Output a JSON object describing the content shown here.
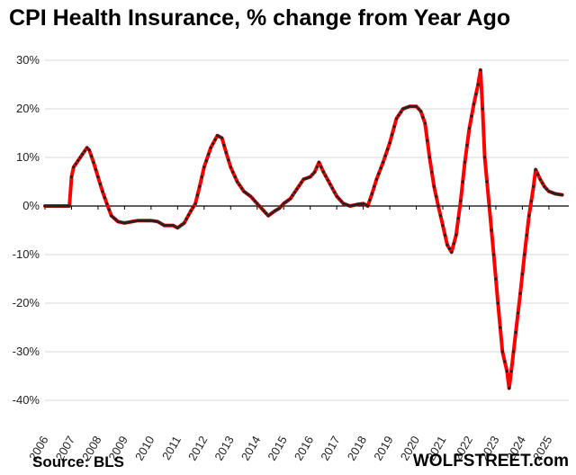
{
  "title": "CPI Health Insurance, % change from Year Ago",
  "source": "Source:  BLS",
  "brand": "WOLFSTREET.com",
  "colors": {
    "line": "#ff0000",
    "marker": "#222222",
    "grid": "#d9d9d9",
    "axis": "#000000"
  },
  "chart_data": {
    "type": "line",
    "title": "CPI Health Insurance, % change from Year Ago",
    "xlabel": "",
    "ylabel": "",
    "ylim": [
      -40,
      30
    ],
    "xlim": [
      2006,
      2025.75
    ],
    "grid": true,
    "legend": "none",
    "y_ticks": [
      30,
      20,
      10,
      0,
      -10,
      -20,
      -30,
      -40
    ],
    "y_tick_labels": [
      "30%",
      "20%",
      "10%",
      "0%",
      "-10%",
      "-20%",
      "-30%",
      "-40%"
    ],
    "x_ticks": [
      2006,
      2007,
      2008,
      2009,
      2010,
      2011,
      2012,
      2013,
      2014,
      2015,
      2016,
      2017,
      2018,
      2019,
      2020,
      2021,
      2022,
      2023,
      2024,
      2025
    ],
    "x_tick_labels": [
      "2006",
      "2007",
      "2008",
      "2009",
      "2010",
      "2011",
      "2012",
      "2013",
      "2014",
      "2015",
      "2016",
      "2017",
      "2018",
      "2019",
      "2020",
      "2021",
      "2022",
      "2023",
      "2024",
      "2025"
    ],
    "series": [
      {
        "points": [
          [
            2006.0,
            0
          ],
          [
            2006.5,
            0
          ],
          [
            2006.92,
            0
          ],
          [
            2007.0,
            6
          ],
          [
            2007.08,
            8
          ],
          [
            2007.33,
            10
          ],
          [
            2007.58,
            12
          ],
          [
            2007.67,
            11.5
          ],
          [
            2007.83,
            9
          ],
          [
            2008.0,
            6
          ],
          [
            2008.17,
            3
          ],
          [
            2008.33,
            0.5
          ],
          [
            2008.5,
            -2
          ],
          [
            2008.75,
            -3.2
          ],
          [
            2009.0,
            -3.5
          ],
          [
            2009.5,
            -3
          ],
          [
            2010.0,
            -3
          ],
          [
            2010.25,
            -3.2
          ],
          [
            2010.5,
            -4
          ],
          [
            2010.83,
            -4
          ],
          [
            2011.0,
            -4.5
          ],
          [
            2011.25,
            -3.5
          ],
          [
            2011.5,
            -1
          ],
          [
            2011.67,
            0.5
          ],
          [
            2011.83,
            4
          ],
          [
            2012.0,
            8
          ],
          [
            2012.25,
            12
          ],
          [
            2012.5,
            14.5
          ],
          [
            2012.67,
            14
          ],
          [
            2012.83,
            11
          ],
          [
            2013.0,
            8
          ],
          [
            2013.25,
            5
          ],
          [
            2013.5,
            3
          ],
          [
            2013.75,
            2
          ],
          [
            2014.0,
            0.5
          ],
          [
            2014.25,
            -1
          ],
          [
            2014.42,
            -2
          ],
          [
            2014.67,
            -1
          ],
          [
            2014.83,
            -0.5
          ],
          [
            2015.0,
            0.5
          ],
          [
            2015.25,
            1.5
          ],
          [
            2015.5,
            3.5
          ],
          [
            2015.75,
            5.5
          ],
          [
            2016.0,
            6
          ],
          [
            2016.17,
            7
          ],
          [
            2016.33,
            9
          ],
          [
            2016.5,
            7
          ],
          [
            2016.75,
            4.5
          ],
          [
            2017.0,
            2
          ],
          [
            2017.25,
            0.5
          ],
          [
            2017.5,
            0
          ],
          [
            2017.75,
            0.3
          ],
          [
            2018.0,
            0.5
          ],
          [
            2018.17,
            0
          ],
          [
            2018.33,
            2.5
          ],
          [
            2018.5,
            5.5
          ],
          [
            2018.75,
            9
          ],
          [
            2019.0,
            13
          ],
          [
            2019.25,
            18
          ],
          [
            2019.5,
            20
          ],
          [
            2019.75,
            20.5
          ],
          [
            2020.0,
            20.5
          ],
          [
            2020.17,
            19.5
          ],
          [
            2020.33,
            17
          ],
          [
            2020.5,
            10
          ],
          [
            2020.67,
            4
          ],
          [
            2020.83,
            0
          ],
          [
            2021.0,
            -4
          ],
          [
            2021.17,
            -8
          ],
          [
            2021.33,
            -9.5
          ],
          [
            2021.5,
            -6
          ],
          [
            2021.67,
            1
          ],
          [
            2021.83,
            9
          ],
          [
            2022.0,
            16
          ],
          [
            2022.17,
            21
          ],
          [
            2022.33,
            25
          ],
          [
            2022.42,
            28
          ],
          [
            2022.5,
            20
          ],
          [
            2022.58,
            10
          ],
          [
            2022.75,
            0
          ],
          [
            2022.92,
            -10
          ],
          [
            2023.08,
            -20
          ],
          [
            2023.25,
            -30
          ],
          [
            2023.42,
            -34
          ],
          [
            2023.5,
            -37.5
          ],
          [
            2023.58,
            -34
          ],
          [
            2023.75,
            -26
          ],
          [
            2023.92,
            -18
          ],
          [
            2024.08,
            -10
          ],
          [
            2024.25,
            -2
          ],
          [
            2024.42,
            4
          ],
          [
            2024.5,
            7.5
          ],
          [
            2024.67,
            5.5
          ],
          [
            2024.83,
            4
          ],
          [
            2025.0,
            3
          ],
          [
            2025.25,
            2.5
          ],
          [
            2025.5,
            2.3
          ]
        ]
      }
    ]
  }
}
